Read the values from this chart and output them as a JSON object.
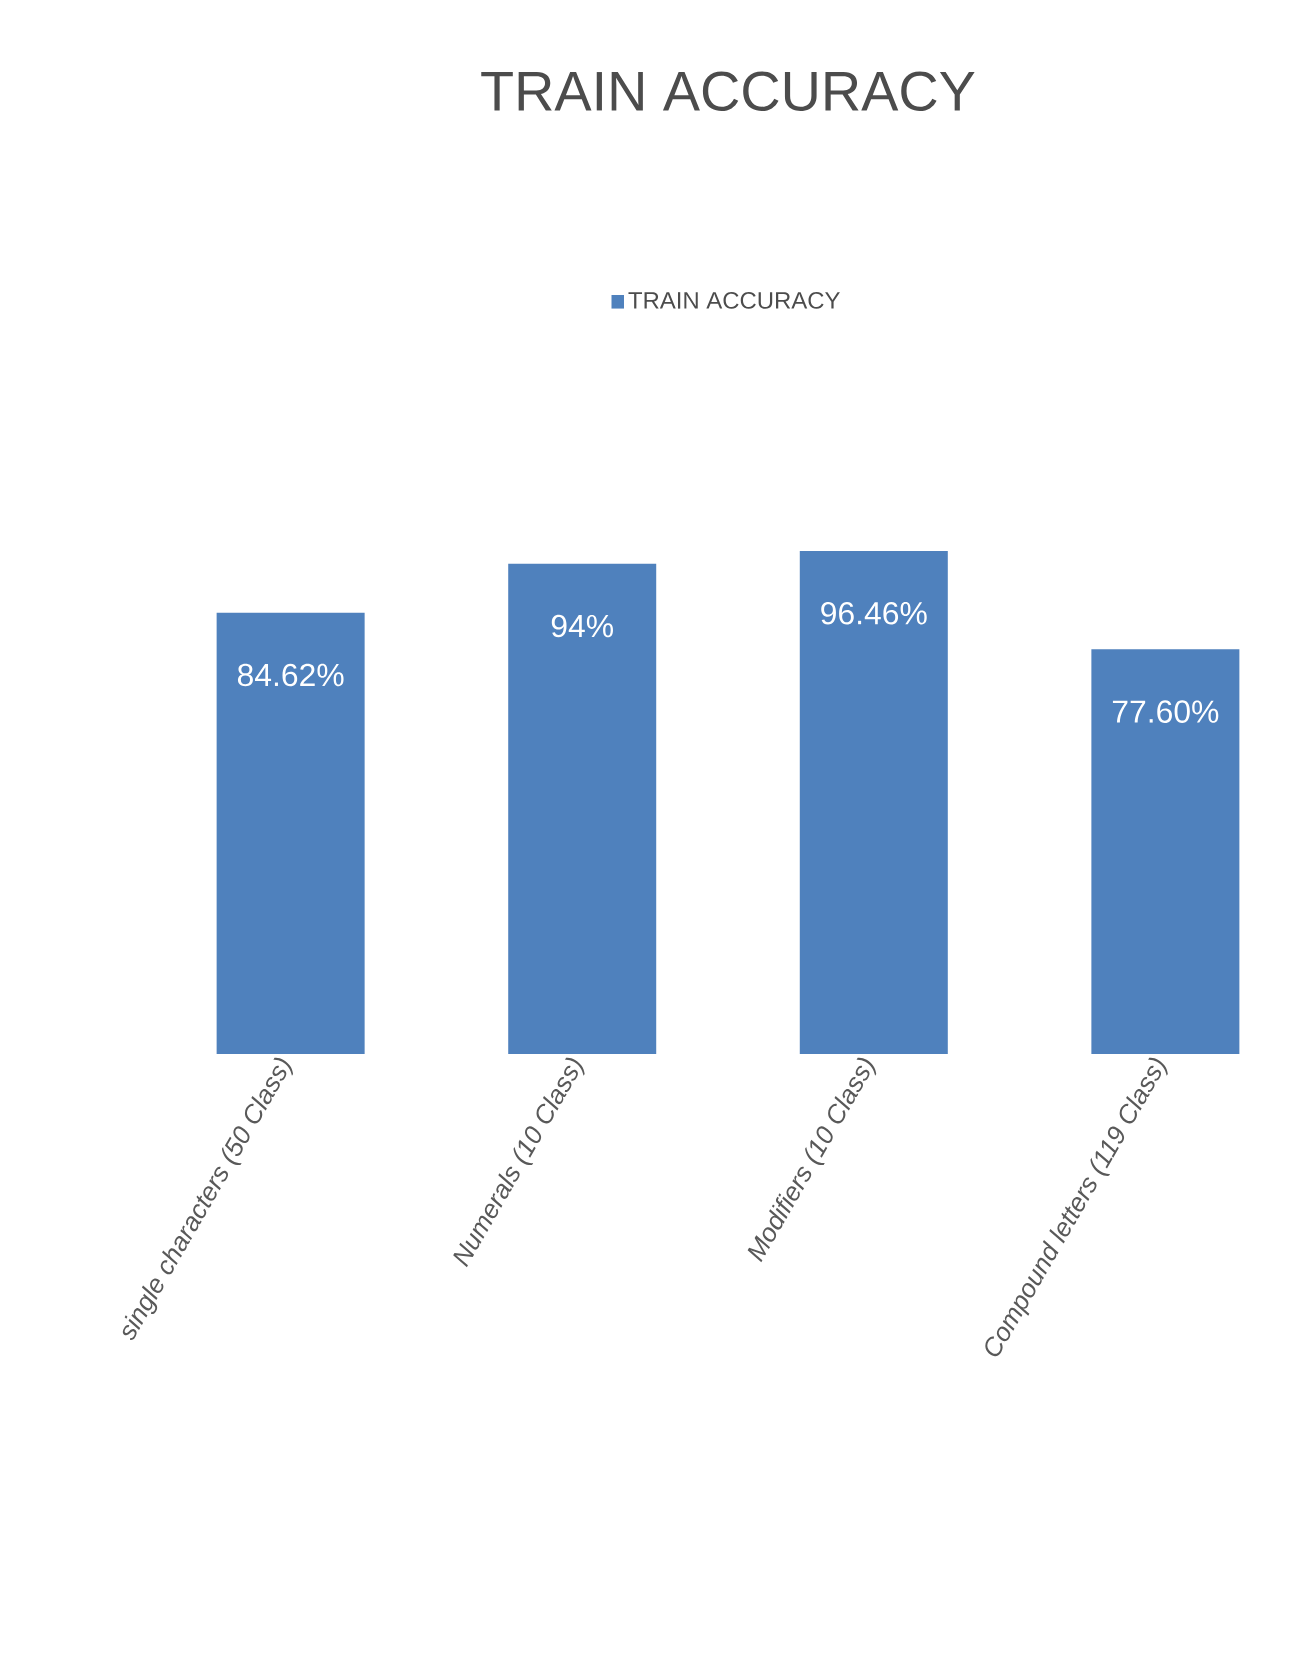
{
  "chart_data": {
    "type": "bar",
    "title": "TRAIN ACCURACY",
    "categories": [
      "single characters (50 Class)",
      "Numerals (10 Class)",
      "Modifiers (10 Class)",
      "Compound letters (119 Class)"
    ],
    "series": [
      {
        "name": "TRAIN ACCURACY",
        "color": "#4f81bd",
        "values": [
          84.62,
          94,
          96.46,
          77.6
        ],
        "value_labels": [
          "84.62%",
          "94%",
          "96.46%",
          "77.60%"
        ]
      }
    ],
    "tick_labels": "x",
    "legend": "top",
    "grid": false
  }
}
